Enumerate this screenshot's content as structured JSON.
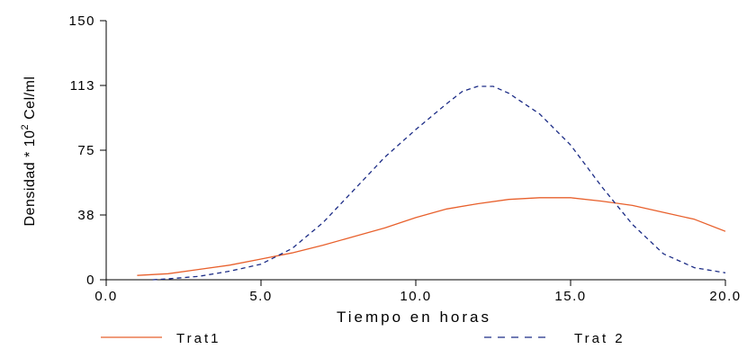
{
  "chart_data": {
    "type": "line",
    "xlabel": "Tiempo en horas",
    "ylabel": {
      "prefix": "Densidad * 10",
      "superscript": "2",
      "suffix": " Cel/ml"
    },
    "xlim": [
      0,
      20
    ],
    "ylim": [
      0,
      150
    ],
    "xticks": [
      0,
      5,
      10,
      15,
      20
    ],
    "xtick_labels": [
      "0.0",
      "5.0",
      "10.0",
      "15.0",
      "20.0"
    ],
    "yticks": [
      0,
      37.5,
      75,
      112.5,
      150
    ],
    "ytick_labels": [
      "0",
      "38",
      "75",
      "113",
      "150"
    ],
    "grid": false,
    "legend": "bottom",
    "series": [
      {
        "name": "Trat1",
        "color": "#e8602c",
        "dash": "solid",
        "x": [
          1.0,
          2.0,
          3.0,
          4.0,
          5.0,
          6.0,
          7.0,
          8.0,
          9.0,
          10.0,
          11.0,
          12.0,
          13.0,
          14.0,
          15.0,
          16.0,
          17.0,
          18.0,
          19.0,
          20.0
        ],
        "y": [
          2.5,
          3.5,
          6,
          8.5,
          12,
          15.5,
          20,
          25,
          30,
          36,
          41,
          44,
          46.5,
          47.5,
          47.5,
          45.5,
          43,
          39,
          35,
          28
        ]
      },
      {
        "name": "Trat 2",
        "color": "#1c2c86",
        "dash": "dashed",
        "x": [
          1.5,
          2.0,
          3.0,
          4.0,
          5.0,
          6.0,
          7.0,
          8.0,
          9.0,
          10.0,
          11.0,
          11.5,
          12.0,
          12.5,
          13.0,
          14.0,
          15.0,
          16.0,
          17.0,
          18.0,
          19.0,
          20.0
        ],
        "y": [
          0,
          0.5,
          2,
          5,
          9,
          18,
          33,
          52,
          71,
          87,
          102,
          109,
          112,
          112,
          108,
          96,
          78,
          54,
          32,
          15,
          7,
          4
        ]
      }
    ]
  }
}
